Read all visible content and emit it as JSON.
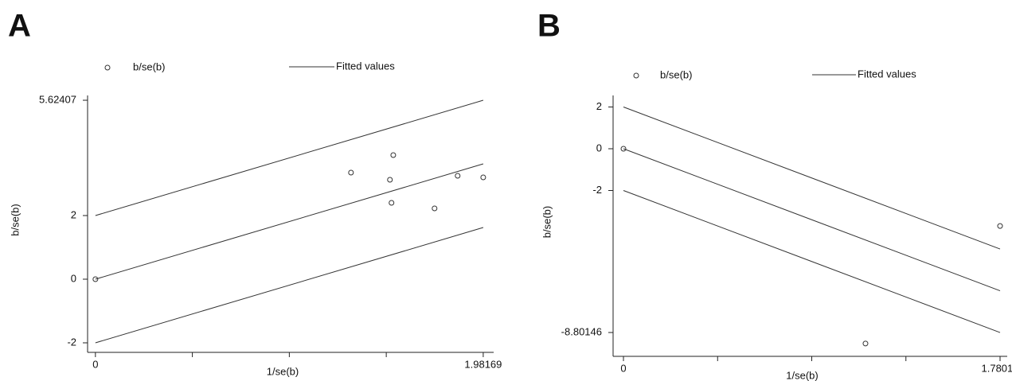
{
  "chart_data": [
    {
      "type": "scatter",
      "panel_label": "A",
      "xlabel": "1/se(b)",
      "ylabel": "b/se(b)",
      "xlim": [
        -0.04,
        2.035
      ],
      "xticks": [
        0,
        1.98169
      ],
      "xticks_minor": [
        0.49542,
        0.99085,
        1.48627
      ],
      "ylim": [
        -2.3,
        5.775
      ],
      "yticks": [
        -2,
        0,
        2,
        5.62407
      ],
      "series": [
        {
          "name": "b/se(b)",
          "kind": "points",
          "color": "#333333",
          "x": [
            0,
            1.306,
            1.522,
            1.505,
            1.513,
            1.733,
            1.851,
            1.98169
          ],
          "values": [
            0,
            3.35,
            3.9,
            3.125,
            2.4,
            2.225,
            3.25,
            3.2
          ]
        },
        {
          "name": "Fitted values",
          "kind": "line",
          "color": "#333333",
          "x": [
            0,
            1.98169
          ],
          "values": [
            0,
            3.62407
          ]
        }
      ],
      "bounds": {
        "x": [
          0,
          1.98169
        ],
        "upper": [
          2,
          5.62407
        ],
        "lower": [
          -2,
          1.62407
        ]
      }
    },
    {
      "type": "scatter",
      "panel_label": "B",
      "xlabel": "1/se(b)",
      "ylabel": "b/se(b)",
      "xlim": [
        -0.049,
        1.814
      ],
      "xticks": [
        0,
        1.78014
      ],
      "xticks_minor": [
        0.44504,
        0.89007,
        1.33511
      ],
      "ylim": [
        -9.943,
        2.552
      ],
      "yticks": [
        2,
        0,
        -2,
        -8.80146
      ],
      "series": [
        {
          "name": "b/se(b)",
          "kind": "points",
          "color": "#333333",
          "x": [
            0,
            1.144,
            1.78014
          ],
          "values": [
            0,
            -9.33,
            -3.7
          ]
        },
        {
          "name": "Fitted values",
          "kind": "line",
          "color": "#333333",
          "x": [
            0,
            1.78014
          ],
          "values": [
            0,
            -6.80146
          ]
        }
      ],
      "bounds": {
        "x": [
          0,
          1.78014
        ],
        "upper": [
          2,
          -4.80146
        ],
        "lower": [
          -2,
          -8.80146
        ]
      }
    }
  ]
}
